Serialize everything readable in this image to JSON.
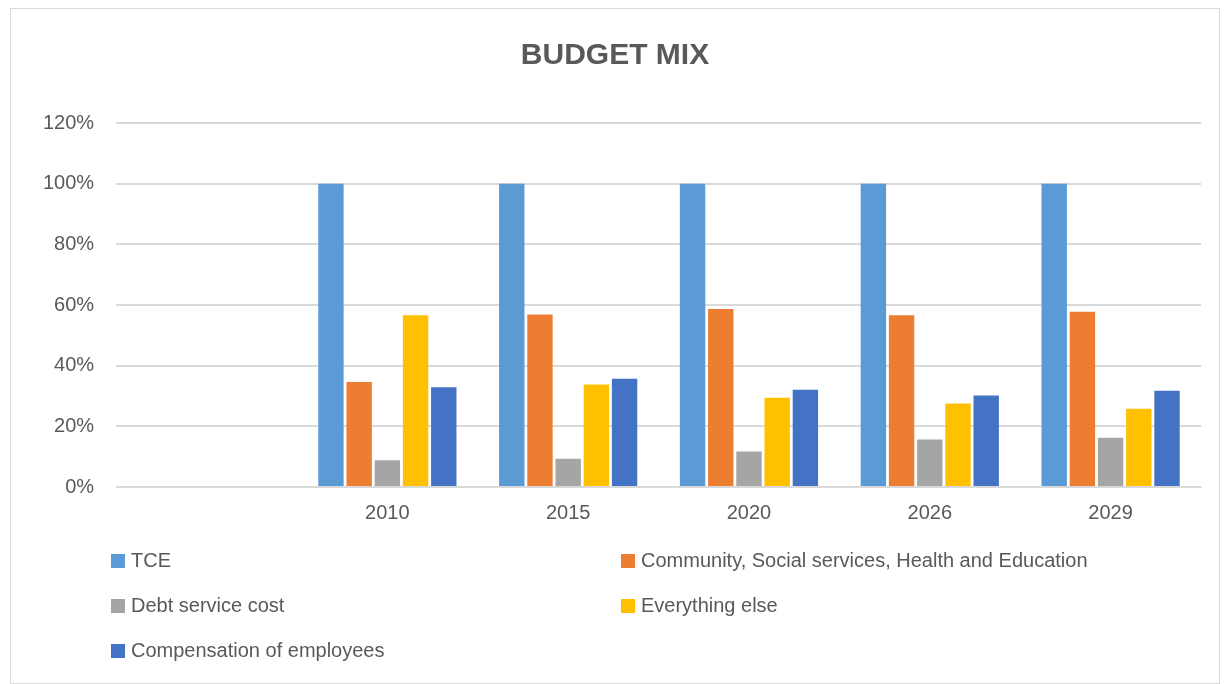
{
  "chart_data": {
    "type": "bar",
    "title": "BUDGET MIX",
    "categories": [
      null,
      "2010",
      "2015",
      "2020",
      "2026",
      "2029"
    ],
    "series": [
      {
        "name": "TCE",
        "color": "#5b9bd5",
        "values": [
          null,
          100,
          100,
          100,
          100,
          100
        ]
      },
      {
        "name": "Community, Social services, Health and Education",
        "color": "#ed7d31",
        "values": [
          null,
          34.6,
          56.9,
          58.7,
          56.6,
          57.8
        ]
      },
      {
        "name": "Debt service cost",
        "color": "#a5a5a5",
        "values": [
          null,
          8.8,
          9.3,
          11.7,
          15.7,
          16.2
        ]
      },
      {
        "name": "Everything else",
        "color": "#ffc000",
        "values": [
          null,
          56.6,
          33.8,
          29.4,
          27.5,
          25.8
        ]
      },
      {
        "name": "Compensation of employees",
        "color": "#4472c4",
        "values": [
          null,
          32.9,
          35.7,
          32.1,
          30.2,
          31.7
        ]
      }
    ],
    "ylim": [
      0,
      120
    ],
    "yticks": [
      {
        "value": 0,
        "label": "0%"
      },
      {
        "value": 20,
        "label": "20%"
      },
      {
        "value": 40,
        "label": "40%"
      },
      {
        "value": 60,
        "label": "60%"
      },
      {
        "value": 80,
        "label": "80%"
      },
      {
        "value": 100,
        "label": "100%"
      },
      {
        "value": 120,
        "label": "120%"
      }
    ],
    "grid": "y",
    "legend": "bottom"
  }
}
